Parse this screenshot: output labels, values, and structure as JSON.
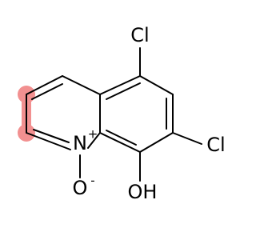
{
  "atoms": [
    {
      "symbol": "Cl"
    },
    {
      "symbol": "Cl"
    },
    {
      "symbol": "N",
      "charge": "+"
    },
    {
      "symbol": "O",
      "charge": "-"
    },
    {
      "symbol": "OH"
    }
  ]
}
